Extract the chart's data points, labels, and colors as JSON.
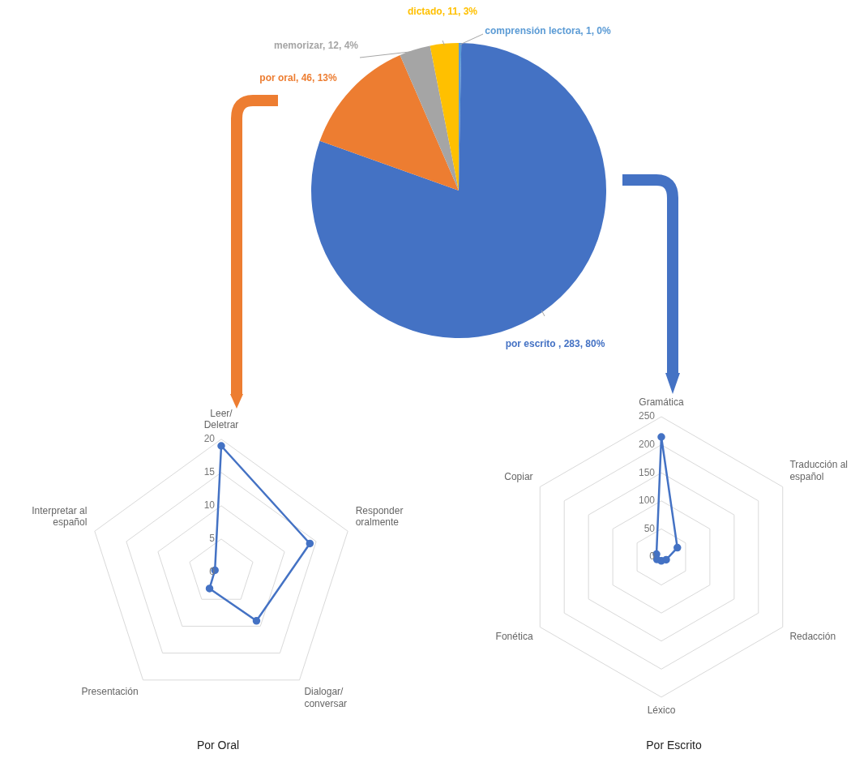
{
  "chart_data": [
    {
      "type": "pie",
      "categories": [
        "comprensión lectora",
        "por escrito ",
        "por oral",
        "memorizar",
        "dictado"
      ],
      "values": [
        1,
        283,
        46,
        12,
        11
      ],
      "colors": [
        "#5b9bd5",
        "#4472c4",
        "#ed7d31",
        "#a5a5a5",
        "#ffc000"
      ],
      "value_labels": [
        "1, 0%",
        "283, 80%",
        "46, 13%",
        "12, 4%",
        "11, 3%"
      ]
    },
    {
      "type": "radar",
      "title": "Por Oral",
      "categories": [
        "Leer/Deletrar",
        "Responder oralmente",
        "Dialogar/conversar",
        "Presentación",
        "Interpretar al español"
      ],
      "series": [
        {
          "color": "#4472c4",
          "values": [
            19,
            14,
            9,
            3,
            1
          ]
        }
      ],
      "ylim": [
        0,
        20
      ],
      "yticks": [
        0,
        5,
        10,
        15,
        20
      ],
      "grid": true,
      "marker": "circle"
    },
    {
      "type": "radar",
      "title": "Por Escrito",
      "categories": [
        "Gramática",
        "Traducción al español",
        "Redacción",
        "Léxico",
        "Fonética",
        "Copiar"
      ],
      "series": [
        {
          "color": "#4472c4",
          "values": [
            214,
            33,
            10,
            7,
            9,
            10
          ]
        }
      ],
      "ylim": [
        0,
        250
      ],
      "yticks": [
        0,
        50,
        100,
        150,
        200,
        250
      ],
      "grid": true,
      "marker": "circle"
    }
  ]
}
